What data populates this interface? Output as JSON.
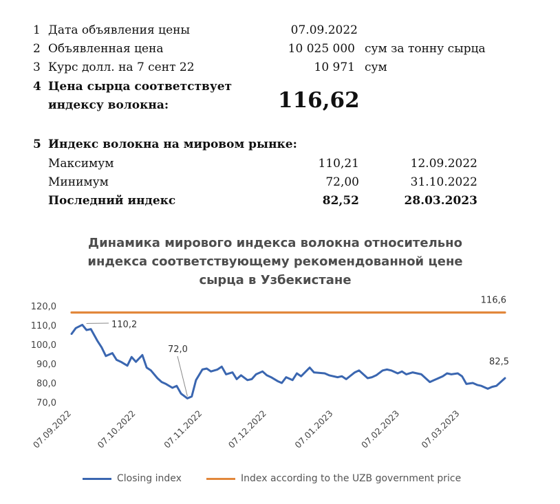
{
  "table": {
    "rows": [
      {
        "n": "1",
        "label": "Дата объявления цены",
        "value": "07.09.2022",
        "unit": ""
      },
      {
        "n": "2",
        "label": "Объявленная цена",
        "value": "10 025 000",
        "unit": "сум за тонну сырца"
      },
      {
        "n": "3",
        "label": "Курс долл. на 7 сент 22",
        "value": "10 971",
        "unit": "сум"
      }
    ],
    "item4": {
      "n": "4",
      "line1": "Цена сырца соответствует",
      "line2": "индексу волокна:",
      "value": "116,62"
    },
    "item5": {
      "n": "5",
      "title": "Индекс волокна на мировом рынке:",
      "rows": [
        {
          "label": "Максимум",
          "value": "110,21",
          "date": "12.09.2022"
        },
        {
          "label": "Минимум",
          "value": "72,00",
          "date": "31.10.2022"
        },
        {
          "label": "Последний индекс",
          "value": "82,52",
          "date": "28.03.2023"
        }
      ]
    }
  },
  "chart_data": {
    "type": "line",
    "title_lines": [
      "Динамика мирового индекса волокна относительно",
      "индекса соответствующему рекомендованной цене",
      "сырца в Узбекистане"
    ],
    "ylim": [
      70,
      120
    ],
    "yticks": [
      "120,0",
      "110,0",
      "100,0",
      "90,0",
      "80,0",
      "70,0"
    ],
    "ytick_values": [
      120,
      110,
      100,
      90,
      80,
      70
    ],
    "x_start": "2022-09-07",
    "x_end": "2023-03-28",
    "xticks": [
      "07.09.2022",
      "07.10.2022",
      "07.11.2022",
      "07.12.2022",
      "07.01.2023",
      "07.02.2023",
      "07.03.2023"
    ],
    "xtick_dates": [
      "2022-09-07",
      "2022-10-07",
      "2022-11-07",
      "2022-12-07",
      "2023-01-07",
      "2023-02-07",
      "2023-03-07"
    ],
    "grid": false,
    "legend_position": "bottom",
    "series": [
      {
        "name": "Closing index",
        "color": "#3a66b0",
        "x": [
          "2022-09-07",
          "2022-09-09",
          "2022-09-12",
          "2022-09-14",
          "2022-09-16",
          "2022-09-19",
          "2022-09-21",
          "2022-09-23",
          "2022-09-26",
          "2022-09-28",
          "2022-09-30",
          "2022-10-03",
          "2022-10-05",
          "2022-10-07",
          "2022-10-10",
          "2022-10-12",
          "2022-10-14",
          "2022-10-17",
          "2022-10-19",
          "2022-10-21",
          "2022-10-24",
          "2022-10-26",
          "2022-10-28",
          "2022-10-31",
          "2022-11-02",
          "2022-11-04",
          "2022-11-07",
          "2022-11-09",
          "2022-11-11",
          "2022-11-14",
          "2022-11-16",
          "2022-11-18",
          "2022-11-21",
          "2022-11-23",
          "2022-11-25",
          "2022-11-28",
          "2022-11-30",
          "2022-12-02",
          "2022-12-05",
          "2022-12-07",
          "2022-12-09",
          "2022-12-12",
          "2022-12-14",
          "2022-12-16",
          "2022-12-19",
          "2022-12-21",
          "2022-12-23",
          "2022-12-27",
          "2022-12-29",
          "2023-01-03",
          "2023-01-05",
          "2023-01-09",
          "2023-01-11",
          "2023-01-13",
          "2023-01-17",
          "2023-01-19",
          "2023-01-23",
          "2023-01-25",
          "2023-01-27",
          "2023-01-30",
          "2023-02-01",
          "2023-02-03",
          "2023-02-06",
          "2023-02-08",
          "2023-02-10",
          "2023-02-13",
          "2023-02-15",
          "2023-02-17",
          "2023-02-21",
          "2023-02-23",
          "2023-02-27",
          "2023-03-01",
          "2023-03-03",
          "2023-03-06",
          "2023-03-08",
          "2023-03-10",
          "2023-03-13",
          "2023-03-15",
          "2023-03-17",
          "2023-03-20",
          "2023-03-22",
          "2023-03-24",
          "2023-03-28"
        ],
        "values": [
          105.5,
          108.5,
          110.2,
          107.5,
          108.0,
          102.0,
          98.5,
          94.0,
          95.5,
          92.0,
          91.0,
          89.0,
          93.5,
          91.0,
          94.5,
          88.0,
          86.5,
          82.5,
          80.5,
          79.5,
          77.5,
          78.5,
          74.5,
          72.0,
          73.0,
          81.5,
          87.0,
          87.5,
          86.0,
          87.0,
          88.5,
          84.5,
          85.5,
          82.0,
          84.0,
          81.5,
          82.0,
          84.5,
          86.0,
          84.0,
          83.0,
          81.0,
          80.0,
          83.0,
          81.5,
          85.0,
          83.5,
          88.0,
          85.5,
          85.0,
          84.0,
          83.0,
          83.5,
          82.0,
          85.5,
          86.5,
          82.5,
          83.0,
          84.0,
          86.5,
          87.0,
          86.5,
          85.0,
          86.0,
          84.5,
          85.5,
          85.0,
          84.5,
          80.5,
          81.5,
          83.5,
          85.0,
          84.5,
          85.0,
          83.5,
          79.5,
          80.0,
          79.0,
          78.5,
          77.0,
          78.0,
          78.5,
          82.5
        ],
        "annotations": [
          {
            "x": "2022-09-12",
            "label": "110,2"
          },
          {
            "x": "2022-10-31",
            "label": "72,0"
          },
          {
            "x": "2023-03-28",
            "label": "82,5"
          }
        ]
      },
      {
        "name": "Index according to the UZB government price",
        "color": "#e2873b",
        "x": [
          "2022-09-07",
          "2023-03-28"
        ],
        "values": [
          116.6,
          116.6
        ],
        "annotations": [
          {
            "x": "2023-03-28",
            "label": "116,6"
          }
        ]
      }
    ]
  }
}
